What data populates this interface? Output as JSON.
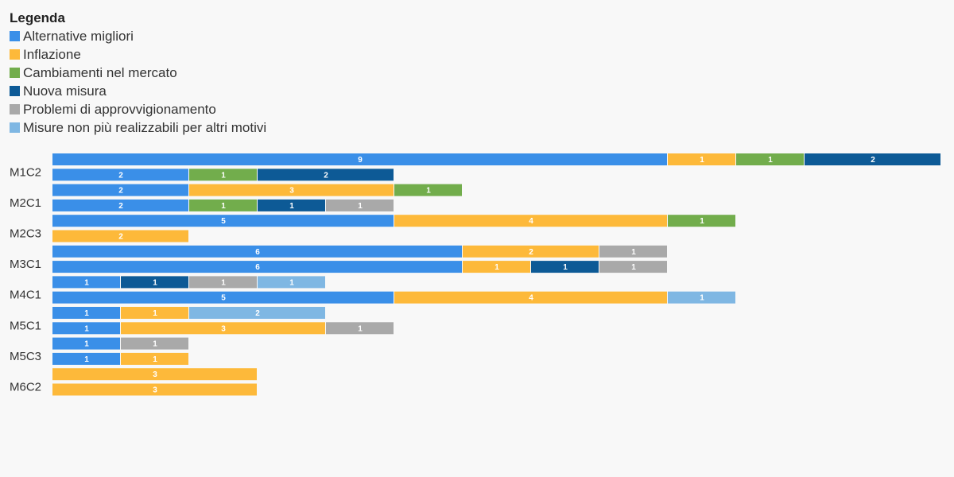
{
  "legend": {
    "title": "Legenda",
    "items": [
      {
        "label": "Alternative migliori",
        "color": "#3a8fe8"
      },
      {
        "label": "Inflazione",
        "color": "#fdb93a"
      },
      {
        "label": "Cambiamenti nel mercato",
        "color": "#72ad4c"
      },
      {
        "label": "Nuova misura",
        "color": "#0d5a96"
      },
      {
        "label": "Problemi di approvvigionamento",
        "color": "#a9a9a9"
      },
      {
        "label": "Misure non più realizzabili per altri motivi",
        "color": "#7fb7e3"
      }
    ]
  },
  "chart_data": {
    "type": "bar",
    "orientation": "horizontal",
    "stacked": true,
    "groups": [
      {
        "label": "M1C2",
        "bars": [
          [
            9,
            1,
            1,
            2,
            0,
            0
          ],
          [
            2,
            0,
            1,
            2,
            0,
            0
          ]
        ]
      },
      {
        "label": "M2C1",
        "bars": [
          [
            2,
            3,
            1,
            0,
            0,
            0
          ],
          [
            2,
            0,
            1,
            1,
            1,
            0
          ]
        ]
      },
      {
        "label": "M2C3",
        "bars": [
          [
            5,
            4,
            1,
            0,
            0,
            0
          ],
          [
            0,
            2,
            0,
            0,
            0,
            0
          ]
        ]
      },
      {
        "label": "M3C1",
        "bars": [
          [
            6,
            2,
            0,
            0,
            1,
            0
          ],
          [
            6,
            1,
            0,
            1,
            1,
            0
          ]
        ]
      },
      {
        "label": "M4C1",
        "bars": [
          [
            1,
            0,
            0,
            1,
            1,
            1
          ],
          [
            5,
            4,
            0,
            0,
            0,
            1
          ]
        ]
      },
      {
        "label": "M5C1",
        "bars": [
          [
            1,
            1,
            0,
            0,
            0,
            2
          ],
          [
            1,
            3,
            0,
            0,
            1,
            0
          ]
        ]
      },
      {
        "label": "M5C3",
        "bars": [
          [
            1,
            0,
            0,
            0,
            1,
            0
          ],
          [
            1,
            1,
            0,
            0,
            0,
            0
          ]
        ]
      },
      {
        "label": "M6C2",
        "bars": [
          [
            0,
            3,
            0,
            0,
            0,
            0
          ],
          [
            0,
            3,
            0,
            0,
            0,
            0
          ]
        ]
      }
    ],
    "series": [
      {
        "name": "Alternative migliori",
        "color": "#3a8fe8"
      },
      {
        "name": "Inflazione",
        "color": "#fdb93a"
      },
      {
        "name": "Cambiamenti nel mercato",
        "color": "#72ad4c"
      },
      {
        "name": "Nuova misura",
        "color": "#0d5a96"
      },
      {
        "name": "Problemi di approvvigionamento",
        "color": "#a9a9a9"
      },
      {
        "name": "Misure non più realizzabili per altri motivi",
        "color": "#7fb7e3"
      }
    ],
    "xlim": [
      0,
      13
    ],
    "grid": false,
    "legend_position": "top-left"
  }
}
